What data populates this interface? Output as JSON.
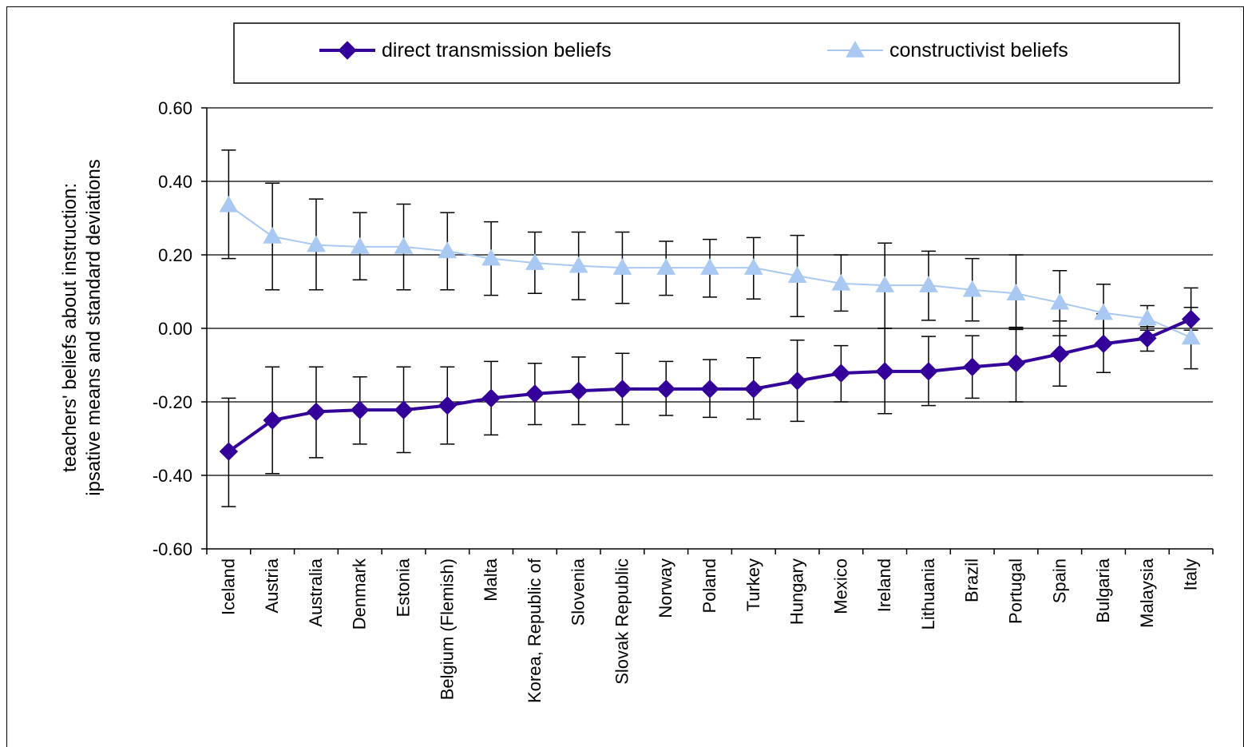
{
  "chart_data": {
    "type": "line",
    "ylabel": "teachers' beliefs about instruction:\nipsative means and standard deviations",
    "xlabel": "",
    "ylim": [
      -0.6,
      0.6
    ],
    "yticks": [
      -0.6,
      -0.4,
      -0.2,
      0.0,
      0.2,
      0.4,
      0.6
    ],
    "ytick_labels": [
      "-0.60",
      "-0.40",
      "-0.20",
      "0.00",
      "0.20",
      "0.40",
      "0.60"
    ],
    "grid": "horizontal",
    "legend_position": "top",
    "categories": [
      "Iceland",
      "Austria",
      "Australia",
      "Denmark",
      "Estonia",
      "Belgium (Flemish)",
      "Malta",
      "Korea, Republic of",
      "Slovenia",
      "Slovak Republic",
      "Norway",
      "Poland",
      "Turkey",
      "Hungary",
      "Mexico",
      "Ireland",
      "Lithuania",
      "Brazil",
      "Portugal",
      "Spain",
      "Bulgaria",
      "Malaysia",
      "Italy"
    ],
    "series": [
      {
        "name": "direct transmission beliefs",
        "color": "#330099",
        "marker": "diamond",
        "values": [
          -0.335,
          -0.25,
          -0.227,
          -0.222,
          -0.222,
          -0.21,
          -0.19,
          -0.178,
          -0.17,
          -0.165,
          -0.165,
          -0.165,
          -0.165,
          -0.143,
          -0.122,
          -0.117,
          -0.117,
          -0.105,
          -0.095,
          -0.07,
          -0.042,
          -0.027,
          0.025
        ],
        "error_low": [
          -0.485,
          -0.395,
          -0.352,
          -0.315,
          -0.338,
          -0.315,
          -0.29,
          -0.262,
          -0.262,
          -0.262,
          -0.237,
          -0.242,
          -0.247,
          -0.253,
          -0.2,
          -0.232,
          -0.21,
          -0.19,
          -0.2,
          -0.157,
          -0.12,
          -0.062,
          -0.005
        ],
        "error_high": [
          -0.19,
          -0.105,
          -0.105,
          -0.132,
          -0.105,
          -0.105,
          -0.09,
          -0.095,
          -0.078,
          -0.068,
          -0.09,
          -0.085,
          -0.08,
          -0.032,
          -0.047,
          0.0,
          -0.022,
          -0.02,
          0.003,
          0.02,
          0.04,
          0.005,
          0.057
        ]
      },
      {
        "name": "constructivist beliefs",
        "color": "#a9c8f2",
        "marker": "triangle",
        "values": [
          0.335,
          0.25,
          0.227,
          0.222,
          0.222,
          0.21,
          0.19,
          0.178,
          0.17,
          0.165,
          0.165,
          0.165,
          0.165,
          0.143,
          0.122,
          0.117,
          0.117,
          0.105,
          0.095,
          0.07,
          0.042,
          0.027,
          -0.025
        ],
        "error_low": [
          0.19,
          0.105,
          0.105,
          0.132,
          0.105,
          0.105,
          0.09,
          0.095,
          0.078,
          0.068,
          0.09,
          0.085,
          0.08,
          0.032,
          0.047,
          0.0,
          0.022,
          0.02,
          -0.003,
          -0.02,
          -0.04,
          -0.005,
          -0.11
        ],
        "error_high": [
          0.485,
          0.395,
          0.352,
          0.315,
          0.338,
          0.315,
          0.29,
          0.262,
          0.262,
          0.262,
          0.237,
          0.242,
          0.247,
          0.253,
          0.2,
          0.232,
          0.21,
          0.19,
          0.2,
          0.157,
          0.12,
          0.062,
          0.11
        ]
      }
    ]
  }
}
